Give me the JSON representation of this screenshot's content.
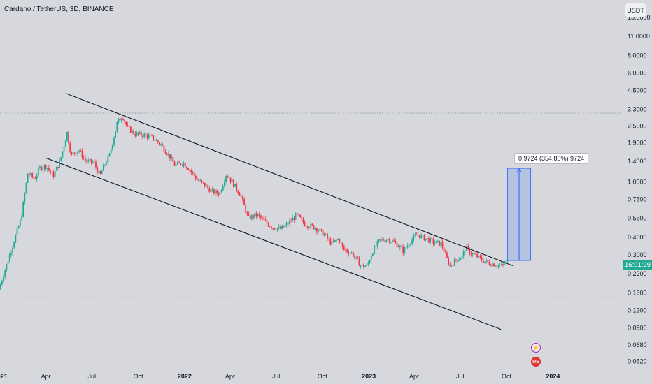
{
  "header": {
    "symbol_title": "Cardano / TetherUS, 3D, BINANCE",
    "currency_label": "USDT"
  },
  "price_tag": {
    "label": "16:01:29",
    "color": "#22ab94"
  },
  "measure": {
    "label": "0.9724 (354.80%) 9724"
  },
  "events": {
    "flash_icon": "lightning-icon",
    "us_flag_icon": "us-flag-icon"
  },
  "colors": {
    "background": "#d6d8de",
    "up": "#22ab94",
    "down": "#f23645",
    "channel": "#131722",
    "measure_fill": "#8fa8e2",
    "measure_line": "#2962ff"
  },
  "chart_data": {
    "type": "candlestick",
    "title": "Cardano / TetherUS, 3D, BINANCE",
    "y_scale": "log",
    "ylim": [
      0.046,
      20
    ],
    "y_tick_labels": [
      "15.0000",
      "11.0000",
      "8.0000",
      "6.0000",
      "4.5000",
      "3.3000",
      "2.5000",
      "1.9000",
      "1.4000",
      "1.0000",
      "0.7500",
      "0.5500",
      "0.4000",
      "0.3000",
      "0.2200",
      "0.1600",
      "0.1200",
      "0.0900",
      "0.0680",
      "0.0520"
    ],
    "y_ticks": [
      15,
      11,
      8,
      6,
      4.5,
      3.3,
      2.5,
      1.9,
      1.4,
      1.0,
      0.75,
      0.55,
      0.4,
      0.3,
      0.22,
      0.16,
      0.12,
      0.09,
      0.068,
      0.052
    ],
    "x_tick_labels": [
      "2021",
      "Apr",
      "Jul",
      "Oct",
      "2022",
      "Apr",
      "Jul",
      "Oct",
      "2023",
      "Apr",
      "Jul",
      "Oct",
      "2024"
    ],
    "x_ticks": [
      "2021-01-01",
      "2021-04-01",
      "2021-07-01",
      "2021-10-01",
      "2022-01-01",
      "2022-04-01",
      "2022-07-01",
      "2022-10-01",
      "2023-01-01",
      "2023-04-01",
      "2023-07-01",
      "2023-10-01",
      "2024-01-01"
    ],
    "x_range": [
      "2020-12-31",
      "2024-05-14"
    ],
    "horizontal_levels": [
      3.1,
      0.15
    ],
    "channel": {
      "upper": [
        [
          "2021-05-10",
          4.3
        ],
        [
          "2023-10-15",
          0.25
        ]
      ],
      "lower": [
        [
          "2021-04-01",
          1.48
        ],
        [
          "2023-09-20",
          0.088
        ]
      ]
    },
    "measure": {
      "start": "2023-10-03",
      "end": "2023-11-18",
      "from": 0.274,
      "to": 1.25,
      "change": 0.9724,
      "change_percent": 354.8
    },
    "candle_path": [
      [
        "2021-01-01",
        0.17
      ],
      [
        "2021-01-28",
        0.35
      ],
      [
        "2021-02-14",
        0.55
      ],
      [
        "2021-02-27",
        1.15
      ],
      [
        "2021-03-13",
        1.05
      ],
      [
        "2021-03-22",
        1.25
      ],
      [
        "2021-04-05",
        1.3
      ],
      [
        "2021-04-18",
        1.1
      ],
      [
        "2021-05-02",
        1.4
      ],
      [
        "2021-05-16",
        2.25
      ],
      [
        "2021-05-24",
        1.55
      ],
      [
        "2021-06-08",
        1.7
      ],
      [
        "2021-06-22",
        1.4
      ],
      [
        "2021-07-08",
        1.38
      ],
      [
        "2021-07-20",
        1.1
      ],
      [
        "2021-07-28",
        1.3
      ],
      [
        "2021-08-08",
        1.55
      ],
      [
        "2021-08-24",
        2.7
      ],
      [
        "2021-09-03",
        2.95
      ],
      [
        "2021-09-12",
        2.45
      ],
      [
        "2021-09-28",
        2.2
      ],
      [
        "2021-10-20",
        2.15
      ],
      [
        "2021-11-02",
        2.05
      ],
      [
        "2021-11-18",
        1.85
      ],
      [
        "2021-12-04",
        1.55
      ],
      [
        "2021-12-16",
        1.3
      ],
      [
        "2022-01-01",
        1.38
      ],
      [
        "2022-01-20",
        1.15
      ],
      [
        "2022-01-27",
        1.05
      ],
      [
        "2022-02-12",
        0.95
      ],
      [
        "2022-02-28",
        0.85
      ],
      [
        "2022-03-14",
        0.82
      ],
      [
        "2022-03-28",
        1.15
      ],
      [
        "2022-04-08",
        1.0
      ],
      [
        "2022-04-25",
        0.8
      ],
      [
        "2022-05-10",
        0.55
      ],
      [
        "2022-05-28",
        0.58
      ],
      [
        "2022-06-12",
        0.52
      ],
      [
        "2022-06-28",
        0.47
      ],
      [
        "2022-07-14",
        0.46
      ],
      [
        "2022-08-01",
        0.52
      ],
      [
        "2022-08-14",
        0.58
      ],
      [
        "2022-08-30",
        0.5
      ],
      [
        "2022-09-20",
        0.47
      ],
      [
        "2022-10-08",
        0.42
      ],
      [
        "2022-10-22",
        0.36
      ],
      [
        "2022-11-06",
        0.39
      ],
      [
        "2022-11-14",
        0.33
      ],
      [
        "2022-12-01",
        0.31
      ],
      [
        "2022-12-20",
        0.25
      ],
      [
        "2023-01-01",
        0.25
      ],
      [
        "2023-01-10",
        0.31
      ],
      [
        "2023-01-25",
        0.38
      ],
      [
        "2023-02-12",
        0.39
      ],
      [
        "2023-02-28",
        0.36
      ],
      [
        "2023-03-14",
        0.32
      ],
      [
        "2023-03-26",
        0.37
      ],
      [
        "2023-04-10",
        0.42
      ],
      [
        "2023-04-22",
        0.4
      ],
      [
        "2023-05-12",
        0.37
      ],
      [
        "2023-05-28",
        0.36
      ],
      [
        "2023-06-08",
        0.28
      ],
      [
        "2023-06-14",
        0.25
      ],
      [
        "2023-06-28",
        0.28
      ],
      [
        "2023-07-08",
        0.29
      ],
      [
        "2023-07-15",
        0.34
      ],
      [
        "2023-07-25",
        0.31
      ],
      [
        "2023-08-08",
        0.29
      ],
      [
        "2023-08-20",
        0.27
      ],
      [
        "2023-09-05",
        0.26
      ],
      [
        "2023-09-25",
        0.25
      ],
      [
        "2023-10-05",
        0.27
      ]
    ]
  }
}
